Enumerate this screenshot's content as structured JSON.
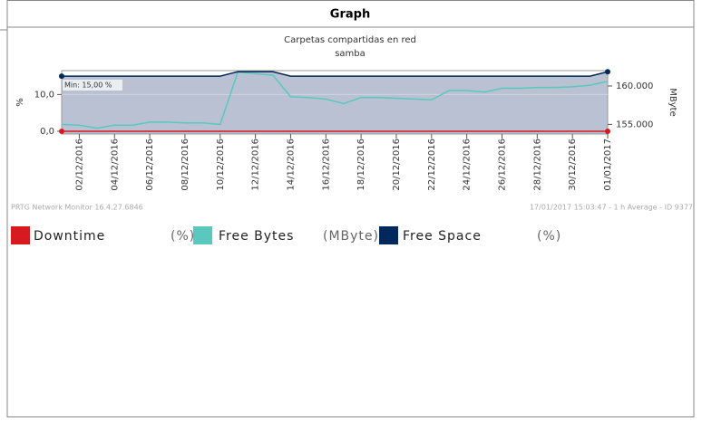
{
  "panel_title": "Graph",
  "footer_left": "PRTG Network Monitor 16.4.27.6846",
  "footer_right": "17/01/2017 15:03:47 - 1 h Average - ID 9377",
  "chart_data": {
    "type": "line",
    "title": "Carpetas compartidas en red",
    "subtitle": "samba",
    "ylabel": "%",
    "y2label": "MByte",
    "annotation": "Min: 15,00 %",
    "x": [
      "2016-12-01",
      "2016-12-02",
      "2016-12-03",
      "2016-12-04",
      "2016-12-05",
      "2016-12-06",
      "2016-12-07",
      "2016-12-08",
      "2016-12-09",
      "2016-12-10",
      "2016-12-11",
      "2016-12-12",
      "2016-12-13",
      "2016-12-14",
      "2016-12-15",
      "2016-12-16",
      "2016-12-17",
      "2016-12-18",
      "2016-12-19",
      "2016-12-20",
      "2016-12-21",
      "2016-12-22",
      "2016-12-23",
      "2016-12-24",
      "2016-12-25",
      "2016-12-26",
      "2016-12-27",
      "2016-12-28",
      "2016-12-29",
      "2016-12-30",
      "2016-12-31",
      "2017-01-01"
    ],
    "xlim": [
      "2016-12-01",
      "2017-01-01"
    ],
    "xticks": [
      {
        "value": "2016-12-02",
        "label": "02/12/2016"
      },
      {
        "value": "2016-12-04",
        "label": "04/12/2016"
      },
      {
        "value": "2016-12-06",
        "label": "06/12/2016"
      },
      {
        "value": "2016-12-08",
        "label": "08/12/2016"
      },
      {
        "value": "2016-12-10",
        "label": "10/12/2016"
      },
      {
        "value": "2016-12-12",
        "label": "12/12/2016"
      },
      {
        "value": "2016-12-14",
        "label": "14/12/2016"
      },
      {
        "value": "2016-12-16",
        "label": "16/12/2016"
      },
      {
        "value": "2016-12-18",
        "label": "18/12/2016"
      },
      {
        "value": "2016-12-20",
        "label": "20/12/2016"
      },
      {
        "value": "2016-12-22",
        "label": "22/12/2016"
      },
      {
        "value": "2016-12-24",
        "label": "24/12/2016"
      },
      {
        "value": "2016-12-26",
        "label": "26/12/2016"
      },
      {
        "value": "2016-12-28",
        "label": "28/12/2016"
      },
      {
        "value": "2016-12-30",
        "label": "30/12/2016"
      },
      {
        "value": "2017-01-01",
        "label": "01/01/2017"
      }
    ],
    "ylim": [
      -0.75,
      16.5
    ],
    "yticks": [
      {
        "value": 0,
        "label": "0,0"
      },
      {
        "value": 10,
        "label": "10,0"
      }
    ],
    "y2lim": [
      153.75,
      162.0
    ],
    "y2ticks": [
      {
        "value": 155,
        "label": "155.000"
      },
      {
        "value": 160,
        "label": "160.000"
      }
    ],
    "series": [
      {
        "name": "Downtime",
        "unit": "(%)",
        "color": "#d71920",
        "axis": "y",
        "values": [
          0,
          0,
          0,
          0,
          0,
          0,
          0,
          0,
          0,
          0,
          0,
          0,
          0,
          0,
          0,
          0,
          0,
          0,
          0,
          0,
          0,
          0,
          0,
          0,
          0,
          0,
          0,
          0,
          0,
          0,
          0,
          0
        ]
      },
      {
        "name": "Free Bytes",
        "unit": "(MByte)",
        "color": "#5bc8c0",
        "axis": "y2",
        "values": [
          155.0,
          154.9,
          154.5,
          154.9,
          154.9,
          155.3,
          155.3,
          155.2,
          155.2,
          155.0,
          161.8,
          161.6,
          161.4,
          158.6,
          158.5,
          158.3,
          157.7,
          158.5,
          158.5,
          158.4,
          158.3,
          158.2,
          159.4,
          159.4,
          159.2,
          159.7,
          159.7,
          159.8,
          159.8,
          159.9,
          160.1,
          160.6
        ]
      },
      {
        "name": "Free Space",
        "unit": "(%)",
        "color": "#00285a",
        "axis": "y",
        "area_color": "#b9c1d2",
        "values": [
          15,
          15,
          15,
          15,
          15,
          15,
          15,
          15,
          15,
          15,
          16.2,
          16.2,
          16.2,
          15,
          15,
          15,
          15,
          15,
          15,
          15,
          15,
          15,
          15,
          15,
          15,
          15,
          15,
          15,
          15,
          15,
          15,
          16.2
        ]
      }
    ]
  }
}
